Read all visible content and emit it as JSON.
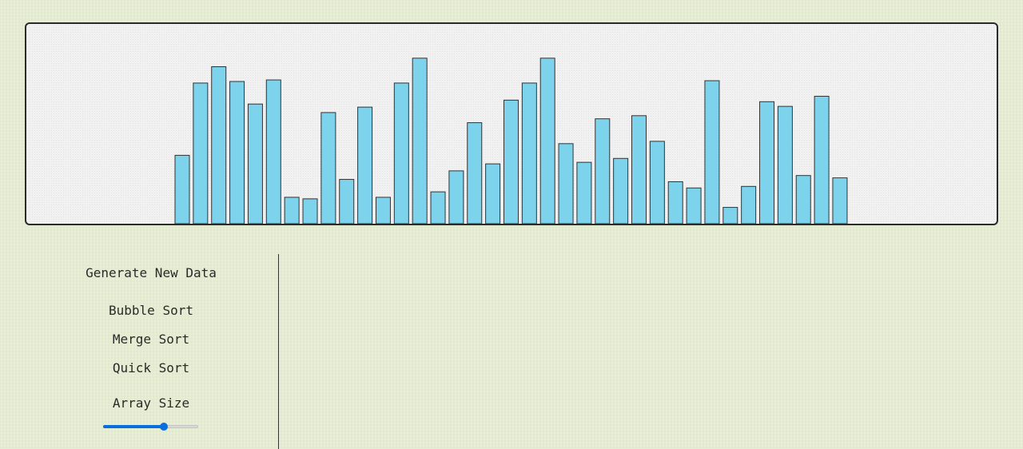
{
  "chart_data": {
    "type": "bar",
    "bar_color": "#7dd3ec",
    "bar_border_color": "#333333",
    "values": [
      88,
      181,
      202,
      183,
      154,
      185,
      34,
      32,
      143,
      57,
      150,
      34,
      181,
      213,
      41,
      68,
      130,
      77,
      159,
      181,
      213,
      103,
      79,
      135,
      84,
      139,
      106,
      54,
      46,
      184,
      21,
      48,
      157,
      151,
      62,
      164,
      59
    ],
    "ylim": [
      0,
      220
    ]
  },
  "controls": {
    "generate_label": "Generate New Data",
    "bubble_label": "Bubble Sort",
    "merge_label": "Merge Sort",
    "quick_label": "Quick Sort",
    "array_size_label": "Array Size"
  },
  "slider": {
    "fraction": 0.64,
    "accent_color": "#0a6fde"
  }
}
